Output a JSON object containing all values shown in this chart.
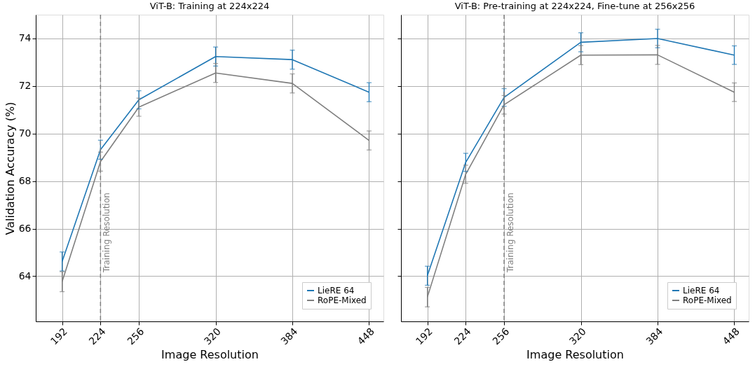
{
  "chart_data": [
    {
      "type": "line",
      "title": "ViT-B: Training at 224x224",
      "xlabel": "Image Resolution",
      "ylabel": "Validation Accuracy (%)",
      "x": [
        192,
        224,
        256,
        320,
        384,
        448
      ],
      "series": [
        {
          "name": "LieRE 64",
          "color": "#1f77b4",
          "values": [
            64.62,
            69.32,
            71.42,
            73.24,
            73.11,
            71.74
          ],
          "errors": [
            0.4,
            0.4,
            0.38,
            0.4,
            0.4,
            0.4
          ]
        },
        {
          "name": "RoPE-Mixed",
          "color": "#7f7f7f",
          "values": [
            63.77,
            68.82,
            71.11,
            72.55,
            72.11,
            69.71
          ],
          "errors": [
            0.42,
            0.4,
            0.38,
            0.4,
            0.4,
            0.4
          ]
        }
      ],
      "xlim": [
        170,
        460
      ],
      "ylim": [
        62.1,
        75.0
      ],
      "xticks": [
        192,
        224,
        256,
        320,
        384,
        448
      ],
      "yticks": [
        64,
        66,
        68,
        70,
        72,
        74
      ],
      "ref_lines": [
        {
          "axis": "x",
          "value": 224,
          "label": "Training Resolution",
          "color": "#7f7f7f",
          "line_style": "dashed"
        }
      ],
      "grid": true,
      "legend": "bottom right",
      "line_style": "solid"
    },
    {
      "type": "line",
      "title": "ViT-B: Pre-training at 224x224, Fine-tune at 256x256",
      "xlabel": "Image Resolution",
      "x": [
        192,
        224,
        256,
        320,
        384,
        448
      ],
      "series": [
        {
          "name": "LieRE 64",
          "color": "#1f77b4",
          "values": [
            64.02,
            68.79,
            71.52,
            73.84,
            74.0,
            73.3
          ],
          "errors": [
            0.4,
            0.38,
            0.37,
            0.4,
            0.39,
            0.39
          ]
        },
        {
          "name": "RoPE-Mixed",
          "color": "#7f7f7f",
          "values": [
            63.12,
            68.29,
            71.21,
            73.3,
            73.31,
            71.74
          ],
          "errors": [
            0.41,
            0.38,
            0.39,
            0.4,
            0.4,
            0.39
          ]
        }
      ],
      "xlim": [
        170,
        460
      ],
      "ylim": [
        62.1,
        75.0
      ],
      "xticks": [
        192,
        224,
        256,
        320,
        384,
        448
      ],
      "yticks": [
        64,
        66,
        68,
        70,
        72,
        74
      ],
      "ref_lines": [
        {
          "axis": "x",
          "value": 256,
          "label": "Training Resolution",
          "color": "#7f7f7f",
          "line_style": "dashed"
        }
      ],
      "grid": true,
      "legend": "bottom right",
      "tick_labels": "x",
      "line_style": "solid"
    }
  ]
}
